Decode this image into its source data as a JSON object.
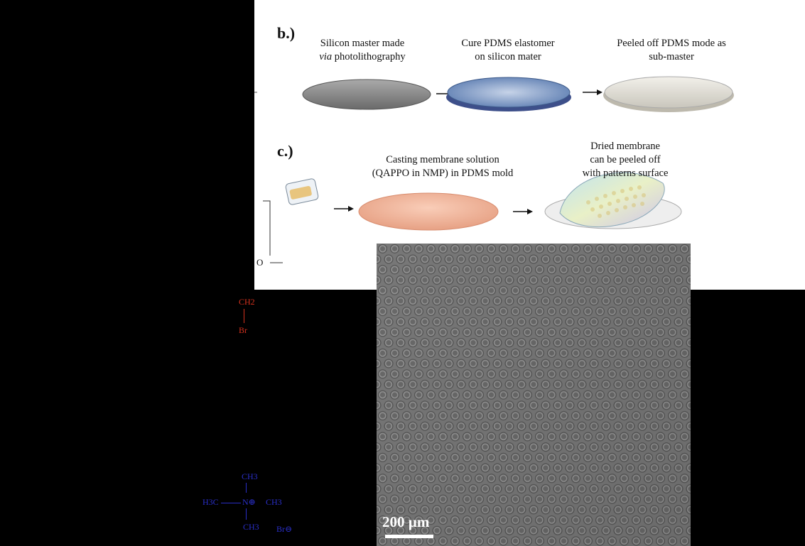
{
  "panel_b": {
    "label": "b.)",
    "step1_line1": "Silicon master made",
    "step1_line2_italic": "via",
    "step1_line2_rest": " photolithography",
    "step2_line1": "Cure PDMS elastomer",
    "step2_line2": "on silicon mater",
    "step3_line1": "Peeled off PDMS mode as",
    "step3_line2": "sub-master"
  },
  "panel_c": {
    "label": "c.)",
    "step1_line1": "Casting membrane solution",
    "step1_line2": "(QAPPO in NMP) in PDMS mold",
    "step2_line1": "Dried membrane",
    "step2_line2": "can be peeled off",
    "step2_line3": "with patterns surface"
  },
  "chemistry": {
    "oxygen": "O",
    "ch2_top": "CH2",
    "br_top": "Br",
    "ch3_a": "CH3",
    "h3c": "H3C",
    "n_plus": "N⊕",
    "ch3_b": "CH3",
    "ch3_c": "CH3",
    "br_minus": "Br⊖"
  },
  "micrograph": {
    "scale_label": "200 µm"
  },
  "colors": {
    "red": "#d6321e",
    "blue": "#2a2fc8",
    "membrane": "#f0b49a",
    "pdms_blue": "#5a7bb0"
  }
}
